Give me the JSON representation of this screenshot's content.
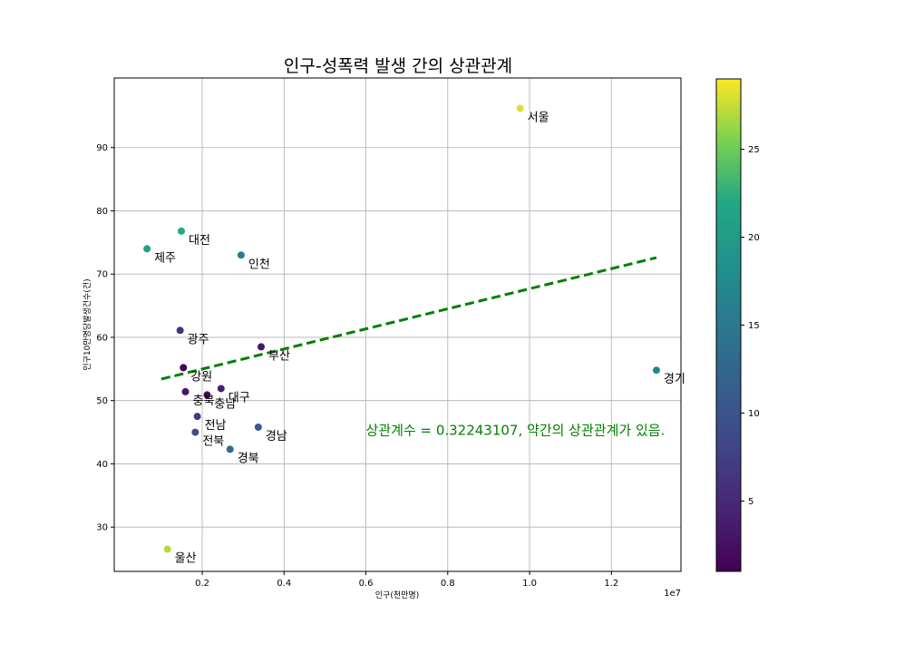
{
  "chart_data": {
    "type": "scatter",
    "title": "인구-성폭력 발생 간의 상관관계",
    "xlabel": "인구(천만명)",
    "ylabel": "인구10만명당발생건수(건)",
    "x_offset_label": "1e7",
    "xlim": [
      -150000,
      13700000
    ],
    "ylim": [
      23,
      101
    ],
    "x_ticks": [
      0.2,
      0.4,
      0.6,
      0.8,
      1.0,
      1.2
    ],
    "x_tick_labels": [
      "0.2",
      "0.4",
      "0.6",
      "0.8",
      "1.0",
      "1.2"
    ],
    "y_ticks": [
      30,
      40,
      50,
      60,
      70,
      80,
      90
    ],
    "grid": true,
    "points": [
      {
        "label": "서울",
        "x": 9770000,
        "y": 96.2,
        "c": 28
      },
      {
        "label": "경기",
        "x": 13100000,
        "y": 54.8,
        "c": 17
      },
      {
        "label": "부산",
        "x": 3440000,
        "y": 58.5,
        "c": 3
      },
      {
        "label": "대구",
        "x": 2460000,
        "y": 51.9,
        "c": 4
      },
      {
        "label": "인천",
        "x": 2950000,
        "y": 73.0,
        "c": 16
      },
      {
        "label": "광주",
        "x": 1460000,
        "y": 61.1,
        "c": 6
      },
      {
        "label": "대전",
        "x": 1490000,
        "y": 76.8,
        "c": 22
      },
      {
        "label": "울산",
        "x": 1150000,
        "y": 26.5,
        "c": 27
      },
      {
        "label": "강원",
        "x": 1540000,
        "y": 55.2,
        "c": 1
      },
      {
        "label": "충북",
        "x": 1590000,
        "y": 51.4,
        "c": 3
      },
      {
        "label": "충남",
        "x": 2120000,
        "y": 50.9,
        "c": 2
      },
      {
        "label": "전북",
        "x": 1830000,
        "y": 45.0,
        "c": 9
      },
      {
        "label": "전남",
        "x": 1880000,
        "y": 47.5,
        "c": 7
      },
      {
        "label": "경북",
        "x": 2680000,
        "y": 42.3,
        "c": 13
      },
      {
        "label": "경남",
        "x": 3370000,
        "y": 45.8,
        "c": 11
      },
      {
        "label": "제주",
        "x": 650000,
        "y": 74.0,
        "c": 21
      }
    ],
    "trendline": {
      "x": [
        1000000,
        13100000
      ],
      "y": [
        53.4,
        72.6
      ],
      "color": "#008000",
      "style": "dashed"
    },
    "colorbar": {
      "min": 1,
      "max": 29,
      "ticks": [
        5,
        10,
        15,
        20,
        25
      ],
      "colormap": "viridis"
    },
    "annotation": {
      "text": "상관계수 = 0.32243107, 약간의 상관관계가 있음.",
      "x": 6000000,
      "y": 44.6,
      "color": "#008000"
    }
  }
}
